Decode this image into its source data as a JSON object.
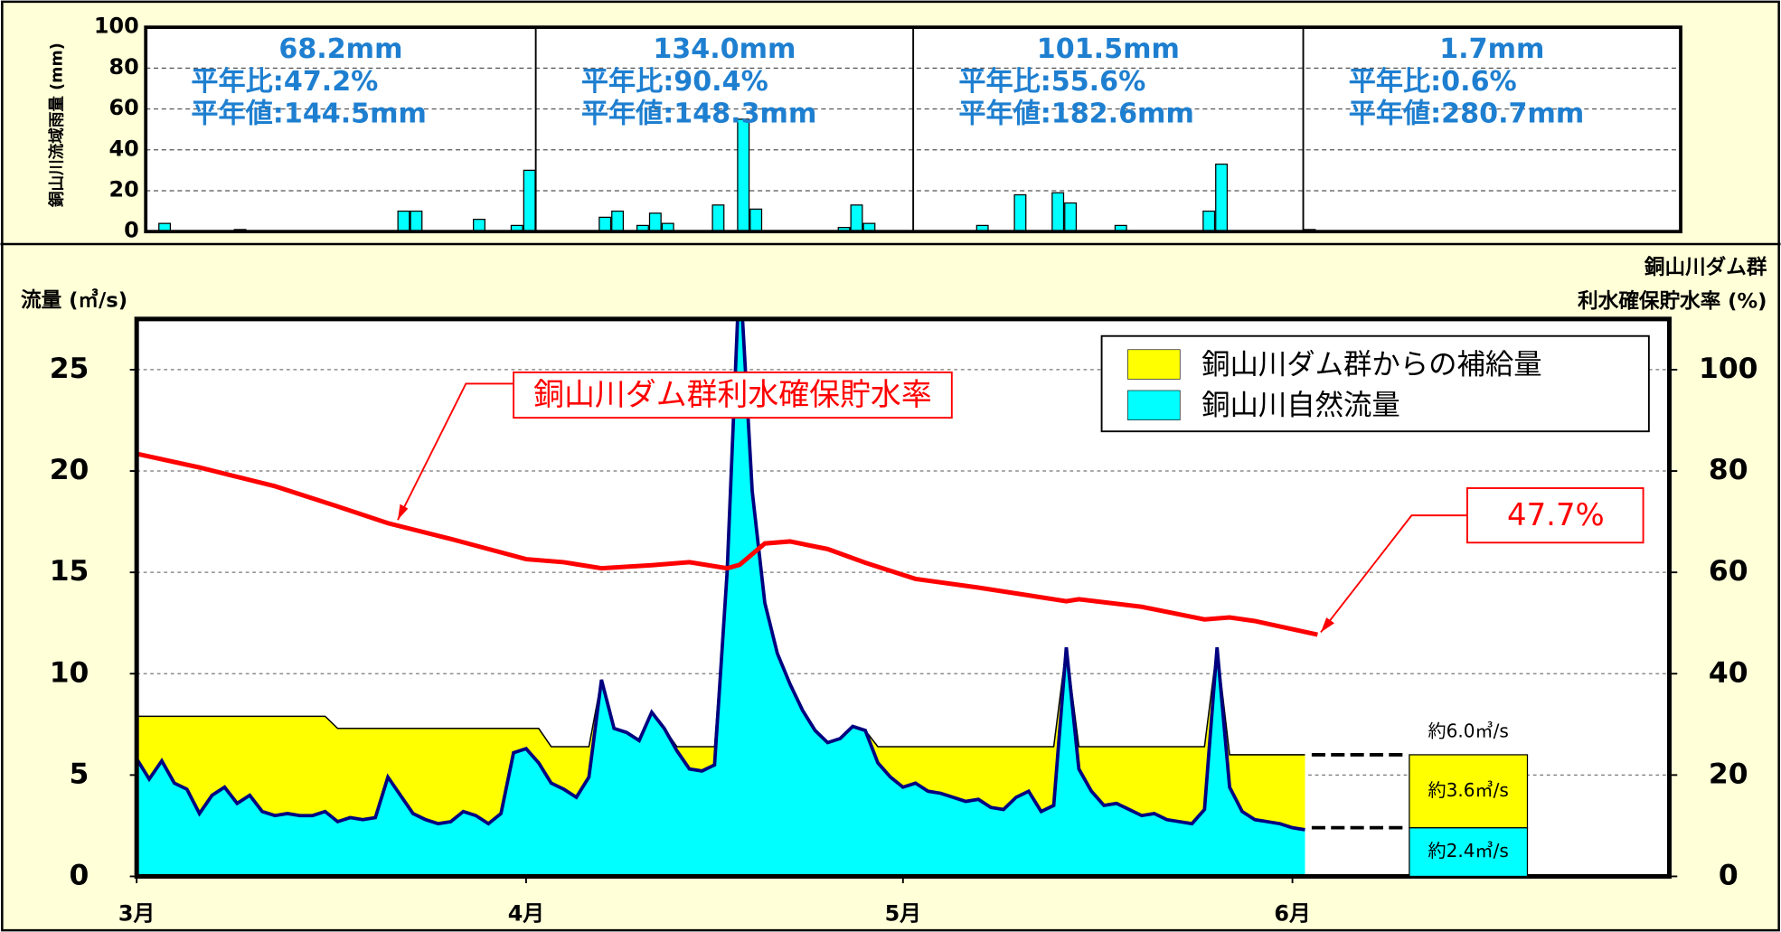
{
  "chart_data": [
    {
      "type": "bar",
      "y_label": "銅山川流域雨量 (mm)",
      "x": [
        1,
        7,
        20,
        21,
        26,
        29,
        30,
        36,
        37,
        39,
        40,
        41,
        45,
        47,
        48,
        55,
        56,
        57,
        66,
        69,
        72,
        73,
        77,
        84,
        85,
        92
      ],
      "values": [
        4,
        1,
        10,
        10,
        6,
        3,
        30,
        7,
        10,
        3,
        9,
        4,
        13,
        55,
        11,
        2,
        13,
        4,
        3,
        18,
        19,
        14,
        3,
        10,
        33,
        1
      ],
      "color": "#00ffff",
      "xlim": [
        0,
        122
      ],
      "xticks": [
        0,
        31,
        61,
        92
      ],
      "ylim": [
        0,
        100
      ],
      "yticks": [
        0,
        20,
        40,
        60,
        80,
        100
      ],
      "grid": true,
      "monthly_notes": [
        {
          "total": "68.2mm",
          "ratio": "平年比:47.2%",
          "normal": "平年値:144.5mm"
        },
        {
          "total": "134.0mm",
          "ratio": "平年比:90.4%",
          "normal": "平年値:148.3mm"
        },
        {
          "total": "101.5mm",
          "ratio": "平年比:55.6%",
          "normal": "平年値:182.6mm"
        },
        {
          "total": "1.7mm",
          "ratio": "平年比:0.6%",
          "normal": "平年値:280.7mm"
        }
      ]
    },
    {
      "type": "stacked_area",
      "y_label": "流量 (㎥/s)",
      "y2_label": [
        "銅山川ダム群",
        "利水確保貯水率 (%)"
      ],
      "x": [
        0,
        1,
        2,
        3,
        4,
        5,
        6,
        7,
        8,
        9,
        10,
        11,
        12,
        13,
        14,
        15,
        16,
        17,
        18,
        19,
        20,
        21,
        22,
        23,
        24,
        25,
        26,
        27,
        28,
        29,
        30,
        31,
        32,
        33,
        34,
        35,
        36,
        37,
        38,
        39,
        40,
        41,
        42,
        43,
        44,
        45,
        46,
        47,
        48,
        49,
        50,
        51,
        52,
        53,
        54,
        55,
        56,
        57,
        58,
        59,
        60,
        61,
        62,
        63,
        64,
        65,
        66,
        67,
        68,
        69,
        70,
        71,
        72,
        73,
        74,
        75,
        76,
        77,
        78,
        79,
        80,
        81,
        82,
        83,
        84,
        85,
        86,
        87,
        88,
        89,
        90,
        91,
        92,
        93
      ],
      "series": [
        {
          "name": "銅山川ダム群からの補給量",
          "color": "#ffff00",
          "values": [
            2.1,
            3.1,
            2.2,
            3.3,
            3.6,
            4.8,
            3.9,
            3.5,
            4.3,
            3.9,
            4.7,
            4.9,
            4.8,
            4.9,
            4.9,
            4.7,
            4.6,
            4.4,
            4.5,
            4.4,
            2.4,
            3.3,
            4.2,
            4.5,
            4.7,
            4.6,
            4.1,
            4.3,
            4.7,
            4.2,
            1.2,
            1.0,
            1.7,
            1.8,
            2.1,
            2.5,
            1.5,
            0,
            0,
            0,
            0,
            0,
            0,
            0.2,
            1.1,
            1.2,
            0.9,
            0,
            0,
            0,
            0,
            0,
            0,
            0,
            0,
            0,
            0,
            0,
            0,
            0.8,
            1.5,
            2.0,
            1.8,
            2.2,
            2.3,
            2.5,
            2.7,
            2.6,
            3.0,
            3.1,
            2.5,
            2.2,
            3.2,
            2.9,
            0,
            1.1,
            2.2,
            2.9,
            2.8,
            3.1,
            3.4,
            3.3,
            3.6,
            3.7,
            3.8,
            3.1,
            0,
            1.6,
            2.8,
            3.2,
            3.3,
            3.4,
            3.6,
            3.7
          ]
        },
        {
          "name": "銅山川自然流量",
          "color": "#00ffff",
          "values": [
            5.8,
            4.8,
            5.7,
            4.6,
            4.3,
            3.1,
            4.0,
            4.4,
            3.6,
            4.0,
            3.2,
            3.0,
            3.1,
            3.0,
            3.0,
            3.2,
            2.7,
            2.9,
            2.8,
            2.9,
            4.9,
            4.0,
            3.1,
            2.8,
            2.6,
            2.7,
            3.2,
            3.0,
            2.6,
            3.1,
            6.1,
            6.3,
            5.6,
            4.6,
            4.3,
            3.9,
            4.9,
            9.7,
            7.3,
            7.1,
            6.7,
            8.1,
            7.3,
            6.2,
            5.3,
            5.2,
            5.5,
            15.0,
            30.0,
            19.0,
            13.5,
            11.0,
            9.5,
            8.2,
            7.2,
            6.6,
            6.8,
            7.4,
            7.2,
            5.6,
            4.9,
            4.4,
            4.6,
            4.2,
            4.1,
            3.9,
            3.7,
            3.8,
            3.4,
            3.3,
            3.9,
            4.2,
            3.2,
            3.5,
            11.3,
            5.3,
            4.2,
            3.5,
            3.6,
            3.3,
            3.0,
            3.1,
            2.8,
            2.7,
            2.6,
            3.3,
            11.3,
            4.4,
            3.2,
            2.8,
            2.7,
            2.6,
            2.4,
            2.3
          ]
        },
        {
          "name": "銅山川ダム群利水確保貯水率",
          "color": "#ff0000",
          "axis": "y2",
          "x": [
            0,
            5,
            11,
            16,
            20,
            25,
            31,
            34,
            37,
            41,
            44,
            47,
            48,
            50,
            52,
            55,
            58,
            62,
            67,
            74,
            75,
            80,
            85,
            87,
            89,
            94
          ],
          "values": [
            83.4,
            80.7,
            77,
            73,
            69.7,
            66.6,
            62.6,
            62,
            60.8,
            61.4,
            62,
            60.8,
            61.5,
            65.7,
            66.1,
            64.6,
            61.9,
            58.7,
            57,
            54.3,
            54.7,
            53.2,
            50.7,
            51.1,
            50.4,
            47.7
          ],
          "value_labels": [
            null,
            null,
            null,
            null,
            null,
            null,
            null,
            null,
            null,
            null,
            null,
            null,
            null,
            null,
            null,
            null,
            null,
            null,
            null,
            null,
            null,
            null,
            null,
            null,
            null,
            "47.7%"
          ]
        }
      ],
      "summary": {
        "total": {
          "value": 6.0,
          "label": "約6.0㎥/s"
        },
        "supply": {
          "value": 3.6,
          "label": "約3.6㎥/s"
        },
        "natural": {
          "value": 2.4,
          "label": "約2.4㎥/s"
        }
      },
      "xlim": [
        0,
        122
      ],
      "xticks": [
        {
          "value": 0,
          "label": "3月"
        },
        {
          "value": 31,
          "label": "4月"
        },
        {
          "value": 61,
          "label": "5月"
        },
        {
          "value": 92,
          "label": "6月"
        }
      ],
      "ylim": [
        0,
        27.5
      ],
      "yticks": [
        0,
        5,
        10,
        15,
        20,
        25
      ],
      "y2lim": [
        0,
        110
      ],
      "y2ticks": [
        0,
        20,
        40,
        60,
        80,
        100
      ],
      "grid": true
    }
  ]
}
